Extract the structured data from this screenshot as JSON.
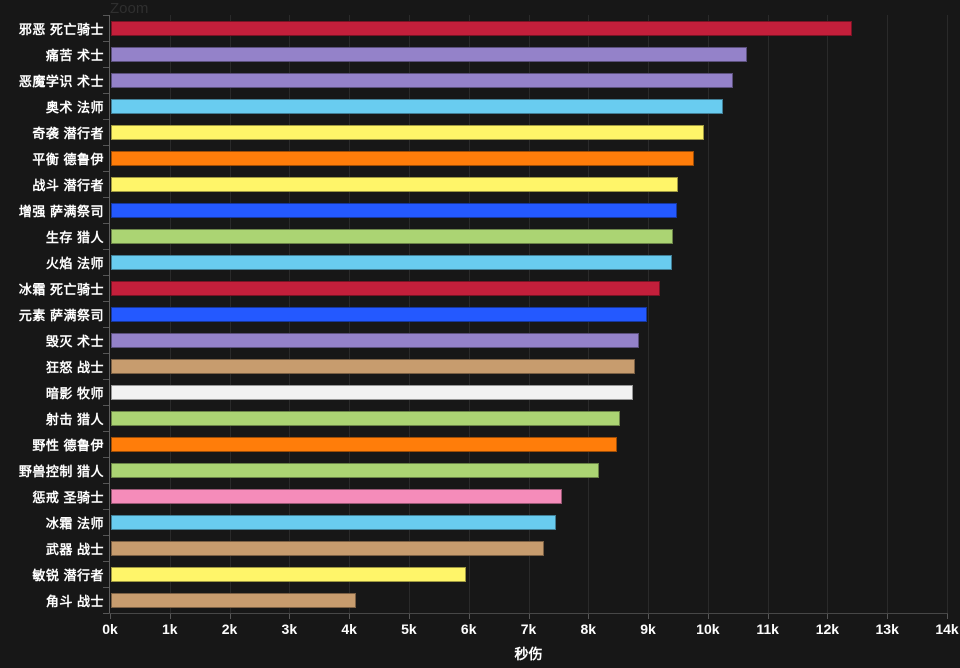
{
  "chart": {
    "zoom_label": "Zoom"
  },
  "chart_data": {
    "type": "bar",
    "orientation": "horizontal",
    "title": "",
    "xlabel": "秒伤",
    "ylabel": "",
    "xlim": [
      0,
      14000
    ],
    "x_ticks": [
      "0k",
      "1k",
      "2k",
      "3k",
      "4k",
      "5k",
      "6k",
      "7k",
      "8k",
      "9k",
      "10k",
      "11k",
      "12k",
      "13k",
      "14k"
    ],
    "grid": true,
    "legend": false,
    "background_color": "#171717",
    "gridline_color": "#2a2a2a",
    "categories": [
      "邪恶 死亡骑士",
      "痛苦 术士",
      "恶魔学识 术士",
      "奥术 法师",
      "奇袭 潜行者",
      "平衡 德鲁伊",
      "战斗 潜行者",
      "增强 萨满祭司",
      "生存 猎人",
      "火焰 法师",
      "冰霜 死亡骑士",
      "元素 萨满祭司",
      "毁灭 术士",
      "狂怒 战士",
      "暗影 牧师",
      "射击 猎人",
      "野性 德鲁伊",
      "野兽控制 猎人",
      "惩戒 圣骑士",
      "冰霜 法师",
      "武器 战士",
      "敏锐 潜行者",
      "角斗 战士"
    ],
    "values": [
      12400,
      10640,
      10400,
      10240,
      9910,
      9750,
      9490,
      9470,
      9400,
      9380,
      9190,
      8960,
      8840,
      8770,
      8730,
      8510,
      8470,
      8170,
      7540,
      7450,
      7240,
      5940,
      4100
    ],
    "colors": [
      "#C41F3B",
      "#9482C9",
      "#9482C9",
      "#69CCF0",
      "#FFF569",
      "#FF7D0A",
      "#FFF569",
      "#2459FF",
      "#ABD473",
      "#69CCF0",
      "#C41F3B",
      "#2459FF",
      "#9482C9",
      "#C79C6E",
      "#F2F2F2",
      "#ABD473",
      "#FF7D0A",
      "#ABD473",
      "#F58CBA",
      "#69CCF0",
      "#C79C6E",
      "#FFF569",
      "#C79C6E"
    ]
  }
}
